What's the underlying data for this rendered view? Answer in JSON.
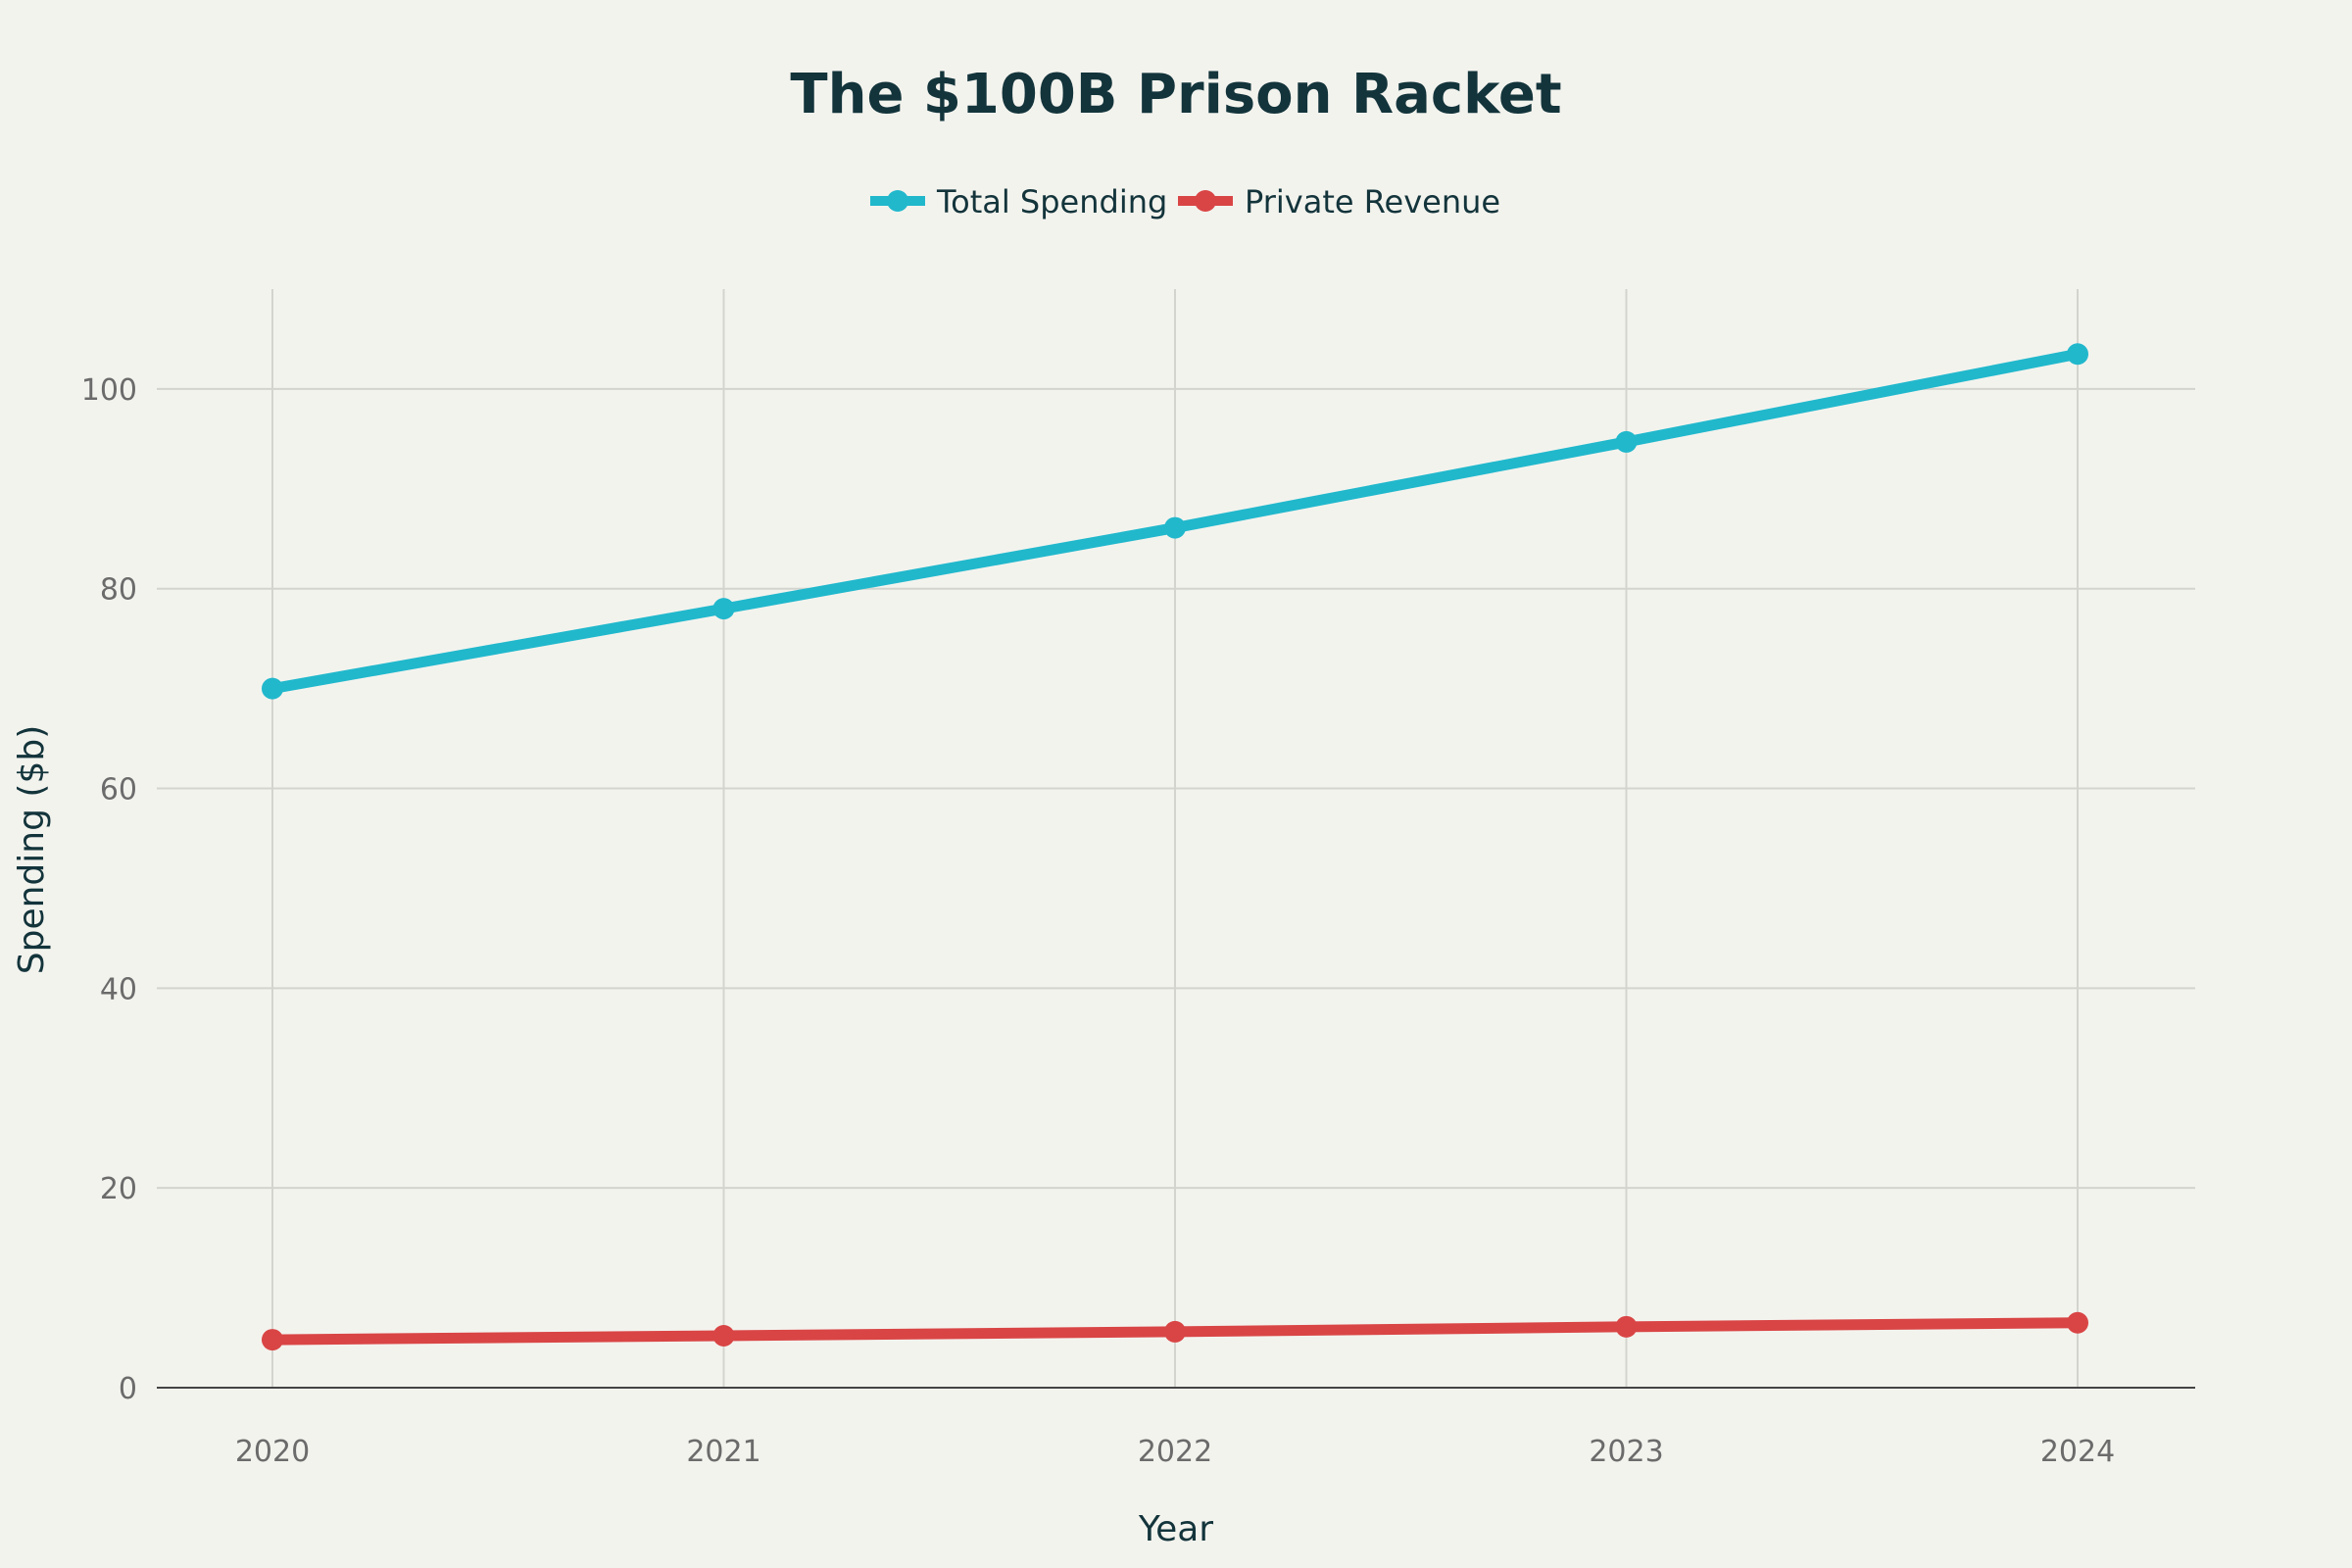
{
  "chart_data": {
    "type": "line",
    "title": "The $100B Prison Racket",
    "xlabel": "Year",
    "ylabel": "Spending ($b)",
    "categories": [
      "2020",
      "2021",
      "2022",
      "2023",
      "2024"
    ],
    "ylim": [
      0,
      110
    ],
    "yticks": [
      0,
      20,
      40,
      60,
      80,
      100
    ],
    "grid": true,
    "legend_position": "top-center",
    "series": [
      {
        "name": "Total Spending",
        "color": "#21b8cc",
        "values": [
          70,
          78,
          86.1,
          94.7,
          103.5
        ]
      },
      {
        "name": "Private Revenue",
        "color": "#d94545",
        "values": [
          4.8,
          5.2,
          5.6,
          6.1,
          6.5
        ]
      }
    ]
  }
}
